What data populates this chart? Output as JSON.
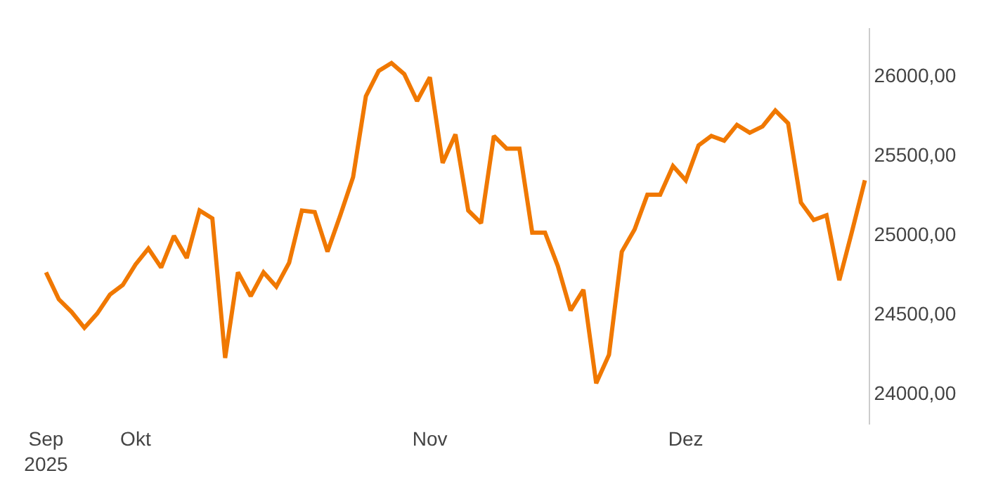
{
  "chart_data": {
    "type": "line",
    "categories": [
      "Sep\n2025",
      null,
      null,
      null,
      null,
      null,
      null,
      "Okt",
      null,
      null,
      null,
      null,
      null,
      null,
      null,
      null,
      null,
      null,
      null,
      null,
      null,
      null,
      null,
      null,
      null,
      null,
      null,
      null,
      null,
      null,
      "Nov",
      null,
      null,
      null,
      null,
      null,
      null,
      null,
      null,
      null,
      null,
      null,
      null,
      null,
      null,
      null,
      null,
      null,
      null,
      null,
      "Dez",
      null,
      null,
      null,
      null,
      null,
      null,
      null,
      null,
      null,
      null,
      null,
      null,
      null,
      null
    ],
    "series": [
      {
        "color": "#f07800",
        "values": [
          24760,
          24590,
          24510,
          24410,
          24500,
          24620,
          24680,
          24810,
          24910,
          24790,
          24990,
          24850,
          25150,
          25100,
          24220,
          24760,
          24610,
          24760,
          24670,
          24820,
          25150,
          25140,
          24890,
          25120,
          25360,
          25870,
          26030,
          26080,
          26010,
          25840,
          25990,
          25450,
          25630,
          25150,
          25070,
          25620,
          25540,
          25540,
          25010,
          25010,
          24800,
          24520,
          24650,
          24060,
          24240,
          24890,
          25030,
          25250,
          25250,
          25430,
          25340,
          25560,
          25620,
          25590,
          25690,
          25640,
          25680,
          25780,
          25700,
          25200,
          25090,
          25120,
          24710,
          25020,
          25340
        ]
      }
    ],
    "yticks": [
      {
        "value": 24000,
        "label": "24000,00"
      },
      {
        "value": 24500,
        "label": "24500,00"
      },
      {
        "value": 25000,
        "label": "25000,00"
      },
      {
        "value": 25500,
        "label": "25500,00"
      },
      {
        "value": 26000,
        "label": "26000,00"
      }
    ],
    "ylim": [
      23800,
      26300
    ],
    "marker": "none",
    "line_style": "solid"
  }
}
